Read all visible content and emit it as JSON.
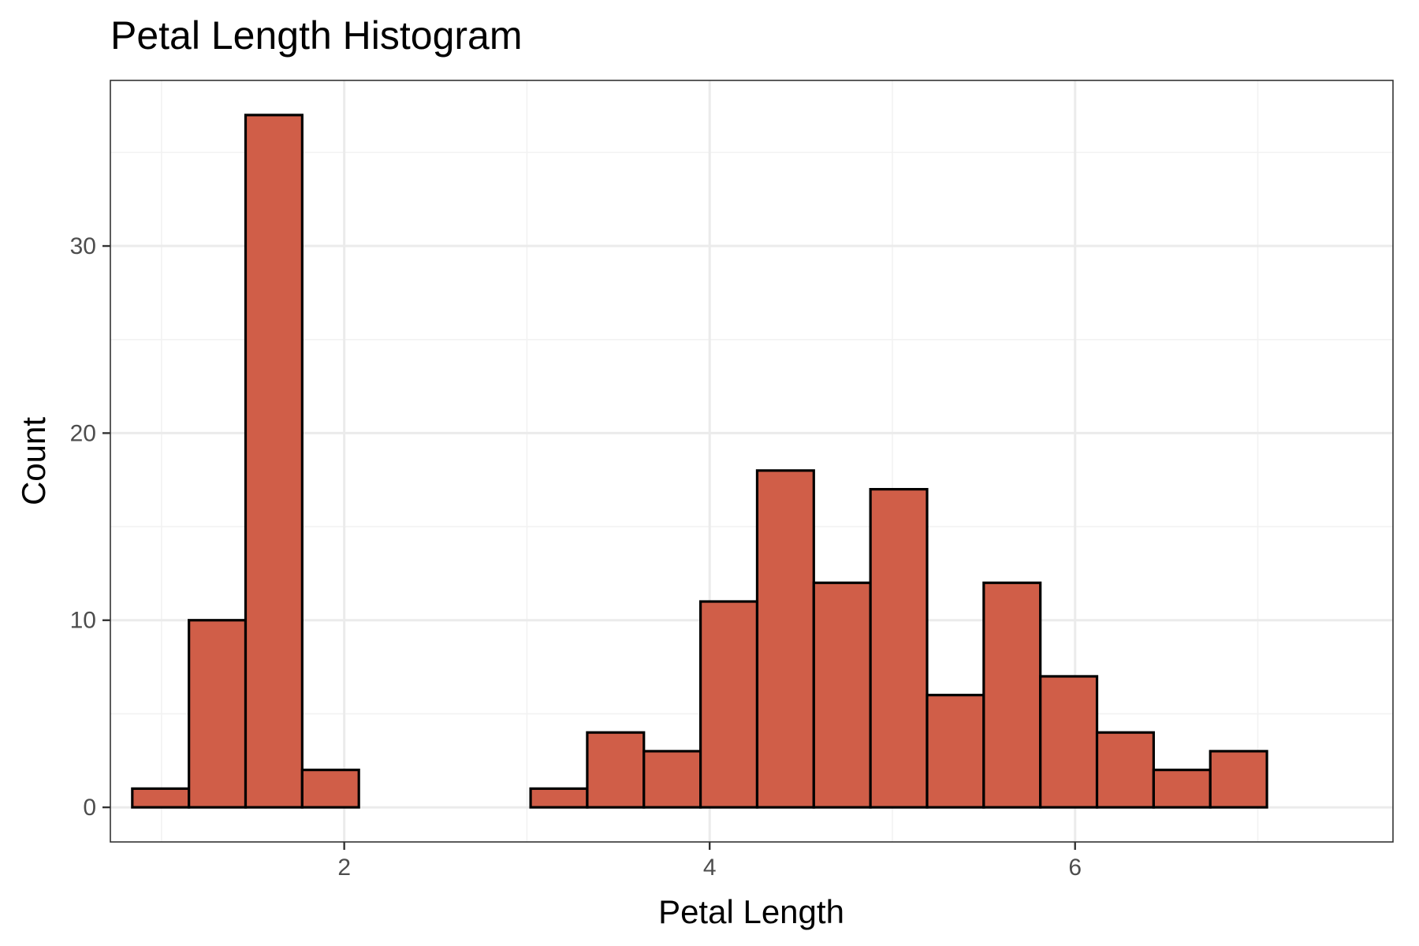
{
  "chart_data": {
    "type": "bar",
    "title": "Petal Length Histogram",
    "xlabel": "Petal Length",
    "ylabel": "Count",
    "xlim": [
      0.72,
      7.74
    ],
    "ylim": [
      -1.85,
      38.85
    ],
    "x_ticks": [
      2,
      4,
      6
    ],
    "x_tick_labels": [
      "2",
      "4",
      "6"
    ],
    "y_ticks": [
      0,
      10,
      20,
      30
    ],
    "y_tick_labels": [
      "0",
      "10",
      "20",
      "30"
    ],
    "x_minor": [
      1,
      3,
      5,
      7
    ],
    "y_minor": [
      5,
      15,
      25,
      35
    ],
    "grid": true,
    "bar_fill": "#d05e48",
    "bar_outline": "#000000",
    "bins": [
      {
        "x_min": 0.84,
        "x_max": 1.15,
        "count": 1
      },
      {
        "x_min": 1.15,
        "x_max": 1.46,
        "count": 10
      },
      {
        "x_min": 1.46,
        "x_max": 1.77,
        "count": 37
      },
      {
        "x_min": 1.77,
        "x_max": 2.08,
        "count": 2
      },
      {
        "x_min": 2.08,
        "x_max": 2.4,
        "count": 0
      },
      {
        "x_min": 2.4,
        "x_max": 2.71,
        "count": 0
      },
      {
        "x_min": 2.71,
        "x_max": 3.02,
        "count": 0
      },
      {
        "x_min": 3.02,
        "x_max": 3.33,
        "count": 1
      },
      {
        "x_min": 3.33,
        "x_max": 3.64,
        "count": 4
      },
      {
        "x_min": 3.64,
        "x_max": 3.95,
        "count": 3
      },
      {
        "x_min": 3.95,
        "x_max": 4.26,
        "count": 11
      },
      {
        "x_min": 4.26,
        "x_max": 4.57,
        "count": 18
      },
      {
        "x_min": 4.57,
        "x_max": 4.88,
        "count": 12
      },
      {
        "x_min": 4.88,
        "x_max": 5.19,
        "count": 17
      },
      {
        "x_min": 5.19,
        "x_max": 5.5,
        "count": 6
      },
      {
        "x_min": 5.5,
        "x_max": 5.81,
        "count": 12
      },
      {
        "x_min": 5.81,
        "x_max": 6.12,
        "count": 7
      },
      {
        "x_min": 6.12,
        "x_max": 6.43,
        "count": 4
      },
      {
        "x_min": 6.43,
        "x_max": 6.74,
        "count": 2
      },
      {
        "x_min": 6.74,
        "x_max": 7.05,
        "count": 3
      }
    ]
  }
}
